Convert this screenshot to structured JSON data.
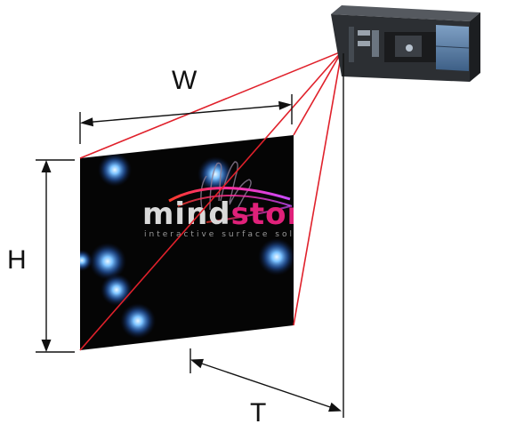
{
  "labels": {
    "width": "W",
    "height": "H",
    "throw": "T"
  },
  "screen": {
    "logo_left": "mind",
    "logo_right": "storm",
    "logo_tagline": "interactive surface solutions"
  },
  "colors": {
    "projection_lines": "#e0212b",
    "dimension_lines": "#111111",
    "screen_bg": "#050505",
    "blob": "#4aa3ff",
    "projector_body": "#2c2f33",
    "projector_panel": "#5a7fa8"
  },
  "icons": {
    "projector": "projector-icon",
    "hand": "hand-icon"
  }
}
